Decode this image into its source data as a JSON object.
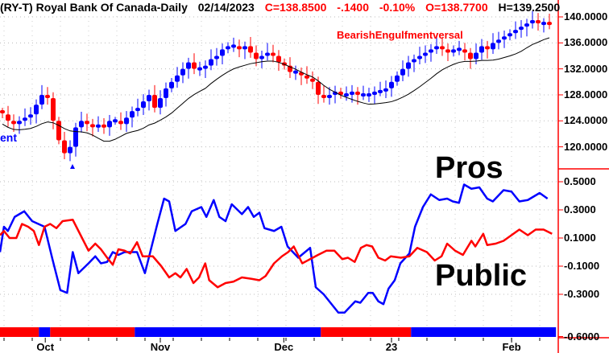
{
  "header": {
    "symbol": "(RY-T) Royal Bank Of Canada-Daily",
    "date": "02/14/2023",
    "close": "C=138.8500",
    "change": "-.1400",
    "pct": "-0.10%",
    "open": "O=138.7700",
    "high": "H=139.2500"
  },
  "colors": {
    "up": "#0000ff",
    "down": "#ff0000",
    "ma": "#000000",
    "axis": "#ff0000",
    "pros": "#0000ff",
    "public": "#ff0000"
  },
  "annotations": {
    "pattern": "BearishEngulfmentversal",
    "left_fragment": "ent",
    "pros_label": "Pros",
    "public_label": "Public"
  },
  "chart_data": [
    {
      "type": "candlestick",
      "title": "(RY-T) Royal Bank Of Canada-Daily",
      "ylim": [
        116,
        141
      ],
      "yticks": [
        "140.0000",
        "136.0000",
        "132.0000",
        "128.0000",
        "124.0000",
        "120.0000"
      ],
      "ytick_values": [
        140,
        136,
        132,
        128,
        124,
        120
      ],
      "closes": [
        125,
        124,
        123.5,
        124,
        124.5,
        125,
        126.5,
        128,
        127.5,
        124,
        121,
        119,
        120,
        123,
        124,
        123.5,
        123,
        123.2,
        123,
        124,
        124,
        123.5,
        124.5,
        125.5,
        126,
        127,
        128,
        126,
        127.5,
        129,
        130,
        131,
        132,
        133,
        132,
        132,
        132.5,
        133.5,
        134,
        135,
        135.5,
        135.5,
        135,
        135.5,
        134.5,
        133.5,
        134,
        134.5,
        134,
        133,
        132.5,
        131.5,
        131.5,
        131,
        130.5,
        130,
        128,
        127.5,
        128,
        128.5,
        128,
        128,
        128.5,
        128,
        128,
        128,
        128.5,
        128.5,
        129,
        130,
        131,
        132,
        133,
        133.5,
        134,
        134.5,
        135,
        135.5,
        135,
        134.5,
        135,
        135,
        134.5,
        133.5,
        134.5,
        135.5,
        135,
        136,
        136.5,
        137,
        137.5,
        138,
        138.5,
        139,
        139.5,
        139,
        139,
        138.8
      ],
      "overlay": "moving average (black line)"
    },
    {
      "type": "line",
      "ylim": [
        -0.6,
        0.55
      ],
      "yticks": [
        "0.5000",
        "0.3000",
        "0.1000",
        "-0.1000",
        "-0.3000",
        "-0.6000"
      ],
      "ytick_values": [
        0.5,
        0.3,
        0.1,
        -0.1,
        -0.3,
        -0.6
      ],
      "xticks": [
        {
          "label": "Oct",
          "bar": 7.6
        },
        {
          "label": "Nov",
          "bar": 28
        },
        {
          "label": "Dec",
          "bar": 49.9
        },
        {
          "label": "23",
          "bar": 69
        },
        {
          "label": "Feb",
          "bar": 90.3
        }
      ],
      "series": [
        {
          "name": "Pros",
          "color": "#0000ff",
          "points": [
            [
              0,
              0
            ],
            [
              0.7,
              0.18
            ],
            [
              1.4,
              0.15
            ],
            [
              2.6,
              0.25
            ],
            [
              4.3,
              0.29
            ],
            [
              5.7,
              0.22
            ],
            [
              7.9,
              0.18
            ],
            [
              9.3,
              -0.05
            ],
            [
              10.7,
              -0.27
            ],
            [
              11.9,
              -0.29
            ],
            [
              12.9,
              0
            ],
            [
              13.9,
              -0.15
            ],
            [
              15.7,
              -0.08
            ],
            [
              16.9,
              -0.03
            ],
            [
              17.9,
              -0.08
            ],
            [
              19,
              -0.07
            ],
            [
              20,
              0
            ],
            [
              21,
              -0.02
            ],
            [
              22.1,
              0
            ],
            [
              24.3,
              0
            ],
            [
              25.7,
              -0.15
            ],
            [
              27.9,
              0.2
            ],
            [
              29.1,
              0.38
            ],
            [
              30,
              0.36
            ],
            [
              31.1,
              0.15
            ],
            [
              32.9,
              0.2
            ],
            [
              34,
              0.29
            ],
            [
              35.7,
              0.32
            ],
            [
              36.6,
              0.25
            ],
            [
              37.9,
              0.37
            ],
            [
              38.9,
              0.25
            ],
            [
              40,
              0.22
            ],
            [
              41.1,
              0.34
            ],
            [
              42.9,
              0.27
            ],
            [
              44,
              0.32
            ],
            [
              45,
              0.25
            ],
            [
              46,
              0.28
            ],
            [
              46.9,
              0.17
            ],
            [
              48.6,
              0.15
            ],
            [
              49.9,
              0.18
            ],
            [
              51,
              0.04
            ],
            [
              52.9,
              -0.04
            ],
            [
              55,
              0.03
            ],
            [
              56,
              -0.25
            ],
            [
              57.4,
              -0.3
            ],
            [
              59,
              -0.38
            ],
            [
              60,
              -0.43
            ],
            [
              61.1,
              -0.43
            ],
            [
              63,
              -0.35
            ],
            [
              63.9,
              -0.36
            ],
            [
              65.3,
              -0.29
            ],
            [
              66.1,
              -0.29
            ],
            [
              67.1,
              -0.35
            ],
            [
              68,
              -0.37
            ],
            [
              68.9,
              -0.26
            ],
            [
              70,
              -0.2
            ],
            [
              71,
              -0.08
            ],
            [
              72.6,
              -0.01
            ],
            [
              73.6,
              0.18
            ],
            [
              75,
              0.32
            ],
            [
              76.4,
              0.41
            ],
            [
              77.9,
              0.37
            ],
            [
              79.3,
              0.38
            ],
            [
              80.3,
              0.36
            ],
            [
              81.4,
              0.35
            ],
            [
              82.3,
              0.48
            ],
            [
              83.6,
              0.45
            ],
            [
              85,
              0.46
            ],
            [
              86.4,
              0.38
            ],
            [
              87.4,
              0.36
            ],
            [
              89.3,
              0.44
            ],
            [
              90.7,
              0.43
            ],
            [
              92.1,
              0.36
            ],
            [
              93.6,
              0.37
            ],
            [
              95.7,
              0.42
            ],
            [
              97.1,
              0.38
            ]
          ]
        },
        {
          "name": "Public",
          "color": "#ff0000",
          "points": [
            [
              0,
              0.12
            ],
            [
              0.7,
              0.15
            ],
            [
              1.7,
              0.1
            ],
            [
              2.9,
              0.1
            ],
            [
              3.9,
              0.2
            ],
            [
              5,
              0.18
            ],
            [
              6,
              0.15
            ],
            [
              6.9,
              0.05
            ],
            [
              7.9,
              0.18
            ],
            [
              8.9,
              0.2
            ],
            [
              10,
              0.17
            ],
            [
              11.1,
              0.22
            ],
            [
              12.9,
              0.23
            ],
            [
              14.3,
              0.12
            ],
            [
              15.7,
              0.01
            ],
            [
              16.9,
              0.06
            ],
            [
              17.9,
              0.02
            ],
            [
              19,
              -0.04
            ],
            [
              20,
              -0.09
            ],
            [
              21,
              0.02
            ],
            [
              22.1,
              0.01
            ],
            [
              23.1,
              -0.01
            ],
            [
              24.3,
              0.07
            ],
            [
              25.3,
              -0.03
            ],
            [
              27.1,
              -0.03
            ],
            [
              28.6,
              -0.1
            ],
            [
              30,
              -0.18
            ],
            [
              31.1,
              -0.15
            ],
            [
              32,
              -0.18
            ],
            [
              33.1,
              -0.12
            ],
            [
              34.3,
              -0.22
            ],
            [
              35.3,
              -0.18
            ],
            [
              36.4,
              -0.08
            ],
            [
              37.1,
              -0.2
            ],
            [
              38.6,
              -0.25
            ],
            [
              40,
              -0.22
            ],
            [
              41.4,
              -0.21
            ],
            [
              42.9,
              -0.18
            ],
            [
              44.6,
              -0.19
            ],
            [
              46,
              -0.2
            ],
            [
              47.1,
              -0.17
            ],
            [
              48.6,
              -0.08
            ],
            [
              50,
              -0.03
            ],
            [
              51.1,
              0
            ],
            [
              52.1,
              0.04
            ],
            [
              53.6,
              -0.08
            ],
            [
              55,
              -0.05
            ],
            [
              56.4,
              -0.02
            ],
            [
              57.9,
              0.01
            ],
            [
              59.3,
              0.01
            ],
            [
              60.7,
              -0.05
            ],
            [
              61.7,
              -0.04
            ],
            [
              62.9,
              -0.07
            ],
            [
              64,
              0.03
            ],
            [
              65,
              0.05
            ],
            [
              66,
              0.04
            ],
            [
              67.1,
              -0.04
            ],
            [
              68.3,
              -0.06
            ],
            [
              69.3,
              -0.03
            ],
            [
              71.1,
              -0.04
            ],
            [
              72.6,
              -0.03
            ],
            [
              74,
              0.03
            ],
            [
              75.7,
              0
            ],
            [
              77.1,
              -0.06
            ],
            [
              78.3,
              -0.03
            ],
            [
              79.3,
              0.06
            ],
            [
              80.7,
              0.01
            ],
            [
              82.1,
              -0.02
            ],
            [
              83.6,
              0.08
            ],
            [
              84.3,
              0.04
            ],
            [
              85.7,
              0.13
            ],
            [
              86.4,
              0.05
            ],
            [
              87.9,
              0.06
            ],
            [
              89.3,
              0.08
            ],
            [
              90.7,
              0.12
            ],
            [
              92.1,
              0.16
            ],
            [
              93.6,
              0.12
            ],
            [
              95,
              0.16
            ],
            [
              96.4,
              0.16
            ],
            [
              97.9,
              0.13
            ]
          ]
        }
      ],
      "band": [
        {
          "from": 0,
          "to": 6.9,
          "color": "#ff0000"
        },
        {
          "from": 6.9,
          "to": 8.9,
          "color": "#0000ff"
        },
        {
          "from": 8.9,
          "to": 23.9,
          "color": "#ff0000"
        },
        {
          "from": 23.9,
          "to": 56.9,
          "color": "#0000ff"
        },
        {
          "from": 56.9,
          "to": 72.9,
          "color": "#ff0000"
        },
        {
          "from": 72.9,
          "to": 98.6,
          "color": "#0000ff"
        }
      ]
    }
  ]
}
